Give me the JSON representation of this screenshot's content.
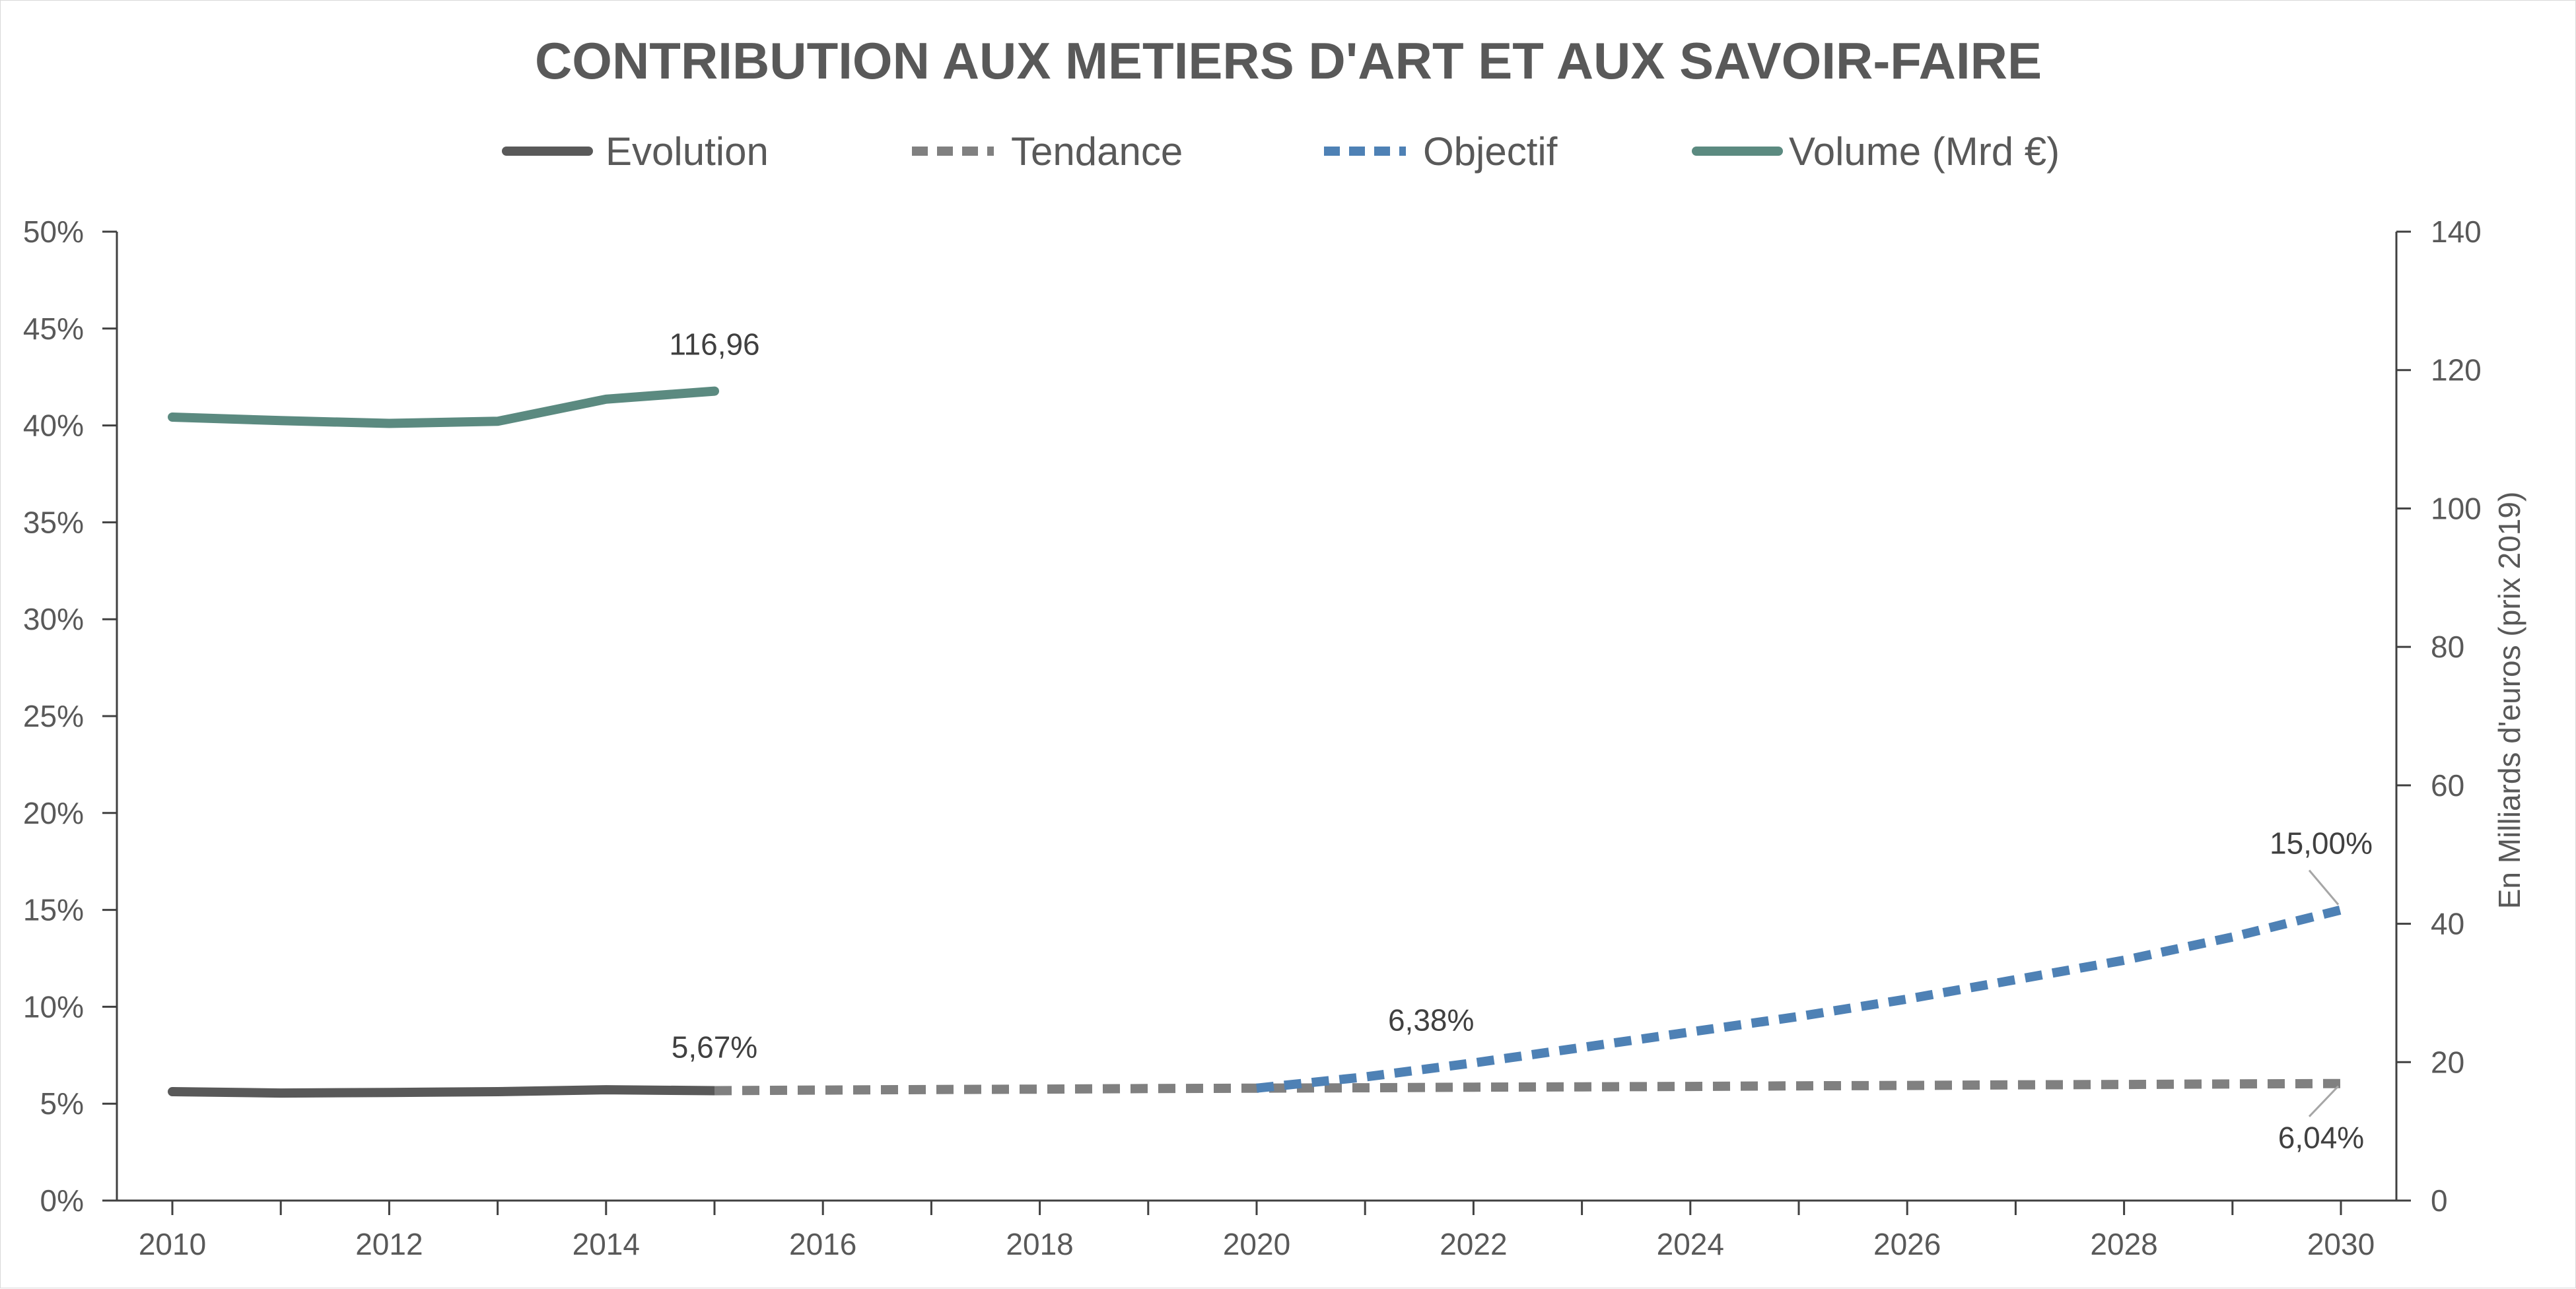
{
  "chart_data": {
    "type": "line",
    "title": "CONTRIBUTION AUX METIERS D'ART ET AUX SAVOIR-FAIRE",
    "xlabel": "",
    "ylabel": "",
    "y2label": "En Milliards d'euros (prix 2019)",
    "x_ticks": [
      "2010",
      "2012",
      "2014",
      "2016",
      "2018",
      "2020",
      "2022",
      "2024",
      "2026",
      "2028",
      "2030"
    ],
    "xlim": [
      2010,
      2030
    ],
    "y_ticks": [
      "0%",
      "5%",
      "10%",
      "15%",
      "20%",
      "25%",
      "30%",
      "35%",
      "40%",
      "45%",
      "50%"
    ],
    "ylim": [
      0,
      50
    ],
    "y2_ticks": [
      "0",
      "20",
      "40",
      "60",
      "80",
      "100",
      "120",
      "140"
    ],
    "y2lim": [
      0,
      140
    ],
    "grid": false,
    "legend_position": "top",
    "legend": [
      "Evolution",
      "Tendance",
      "Objectif",
      "Volume (Mrd €)"
    ],
    "series": [
      {
        "name": "Evolution",
        "axis": "left",
        "style": "solid",
        "color": "#595959",
        "x": [
          2010,
          2011,
          2012,
          2013,
          2014,
          2015
        ],
        "y": [
          5.62,
          5.55,
          5.58,
          5.62,
          5.72,
          5.67
        ]
      },
      {
        "name": "Tendance",
        "axis": "left",
        "style": "dashed",
        "color": "#808080",
        "x": [
          2015,
          2016,
          2017,
          2018,
          2019,
          2020,
          2021,
          2022,
          2023,
          2024,
          2025,
          2026,
          2027,
          2028,
          2029,
          2030
        ],
        "y": [
          5.67,
          5.7,
          5.73,
          5.75,
          5.78,
          5.8,
          5.82,
          5.85,
          5.87,
          5.89,
          5.92,
          5.94,
          5.97,
          5.99,
          6.02,
          6.04
        ]
      },
      {
        "name": "Objectif",
        "axis": "left",
        "style": "dashed",
        "color": "#4e81b5",
        "x": [
          2020,
          2021,
          2022,
          2023,
          2024,
          2025,
          2026,
          2027,
          2028,
          2029,
          2030
        ],
        "y": [
          5.8,
          6.38,
          7.1,
          7.9,
          8.7,
          9.5,
          10.4,
          11.4,
          12.4,
          13.6,
          15.0
        ]
      },
      {
        "name": "Volume (Mrd €)",
        "axis": "right",
        "style": "solid",
        "color": "#5b8a80",
        "x": [
          2010,
          2011,
          2012,
          2013,
          2014,
          2015
        ],
        "y": [
          113.2,
          112.7,
          112.3,
          112.6,
          115.8,
          116.96
        ]
      }
    ],
    "data_labels": [
      {
        "text": "116,96",
        "series": "Volume (Mrd €)",
        "x": 2015,
        "y": 116.96,
        "axis": "right"
      },
      {
        "text": "5,67%",
        "series": "Evolution",
        "x": 2015,
        "y": 5.67,
        "axis": "left"
      },
      {
        "text": "6,38%",
        "series": "Objectif",
        "x": 2021,
        "y": 6.38,
        "axis": "left"
      },
      {
        "text": "15,00%",
        "series": "Objectif",
        "x": 2030,
        "y": 15.0,
        "axis": "left"
      },
      {
        "text": "6,04%",
        "series": "Tendance",
        "x": 2030,
        "y": 6.04,
        "axis": "left"
      }
    ]
  }
}
